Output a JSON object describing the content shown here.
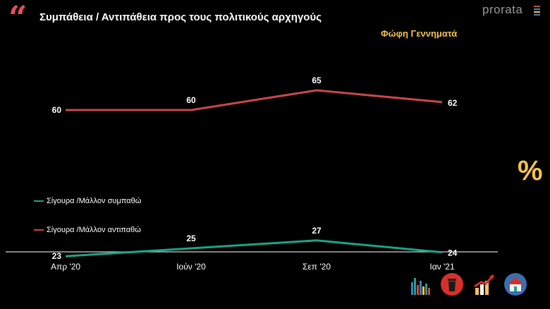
{
  "header": {
    "title": "Συμπάθεια / Αντιπάθεια προς τους πολιτικούς αρχηγούς",
    "subtitle": "Φώφη Γεννηματά",
    "brand": "prorata",
    "percent_symbol": "%"
  },
  "icons": [
    "bar-chart-icon",
    "trash-bin-icon",
    "growth-chart-icon",
    "house-icon"
  ],
  "colors": {
    "background": "#000000",
    "support": "#1fa386",
    "against": "#c9474a",
    "accent": "#f4c24d",
    "quote": "#e35058",
    "brand": "#9a9a9a",
    "axis": "#cfcfcf"
  },
  "chart_data": {
    "type": "line",
    "title": "Συμπάθεια / Αντιπάθεια προς τους πολιτικούς αρχηγούς",
    "subtitle": "Φώφη Γεννηματά",
    "categories": [
      "Απρ '20",
      "Ιούν '20",
      "Σεπ '20",
      "Ιαν '21"
    ],
    "series": [
      {
        "name": "Σίγουρα /Μάλλον συμπαθώ",
        "values": [
          23,
          25,
          27,
          24
        ],
        "color": "#1fa386"
      },
      {
        "name": "Σίγουρα /Μάλλον αντιπαθώ",
        "values": [
          60,
          60,
          65,
          62
        ],
        "color": "#c9474a"
      }
    ],
    "ylim": [
      0,
      80
    ],
    "grid": false,
    "legend_position": "left"
  }
}
